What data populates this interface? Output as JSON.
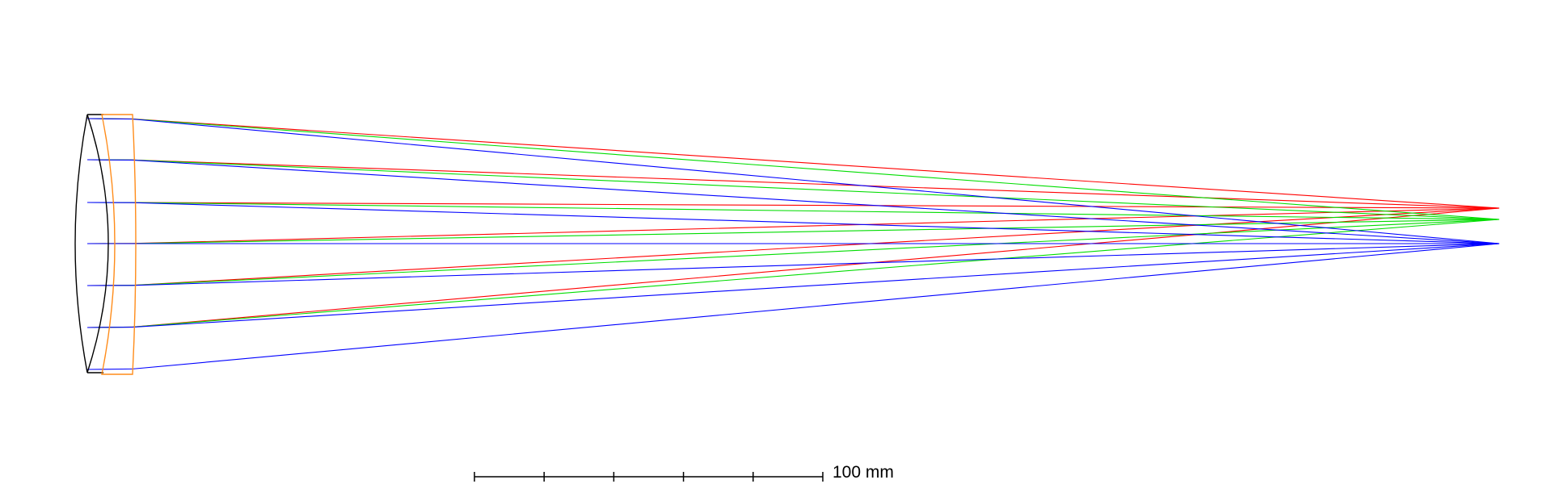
{
  "scale_bar": {
    "label": "100 mm",
    "divisions": 5
  },
  "colors": {
    "background": "#ffffff",
    "lens_front_element": "#000000",
    "lens_rear_element": "#ff8c1a",
    "ray_red": "#ff0000",
    "ray_green": "#00dd00",
    "ray_blue": "#0000ff",
    "scale_bar": "#000000"
  },
  "elements": [
    {
      "name": "lens-element-1",
      "color_key": "lens_front_element"
    },
    {
      "name": "lens-element-2",
      "color_key": "lens_rear_element"
    }
  ],
  "ray_fans": [
    {
      "name": "ray-fan-red",
      "color_key": "ray_red"
    },
    {
      "name": "ray-fan-green",
      "color_key": "ray_green"
    },
    {
      "name": "ray-fan-blue",
      "color_key": "ray_blue"
    }
  ]
}
